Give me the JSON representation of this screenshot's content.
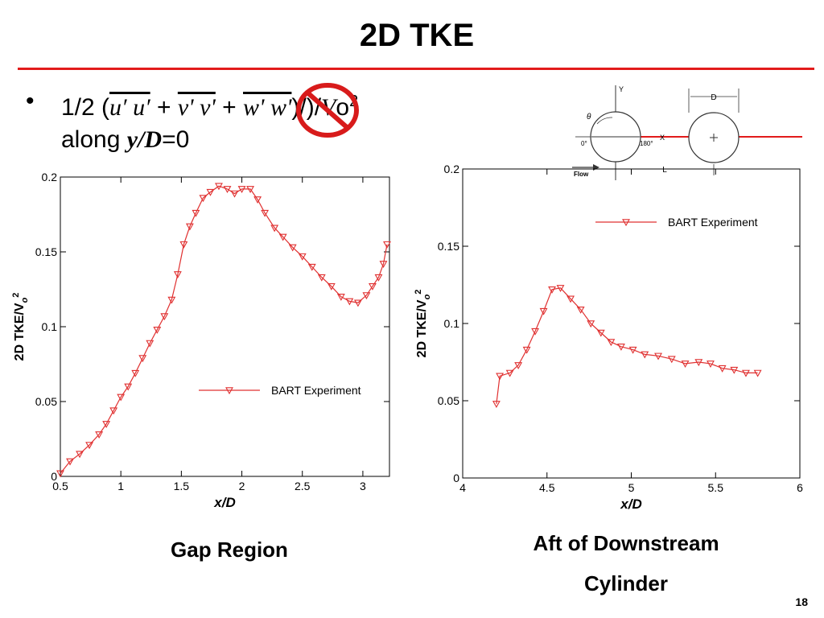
{
  "slide": {
    "title": "2D TKE",
    "page_number": "18"
  },
  "bullet": {
    "marker": "•",
    "prefix": "1/2 (",
    "term_uu": "u′ u′",
    "plus1": " + ",
    "term_vv": "v' v'",
    "plus2": " + ",
    "term_ww": "w' w'",
    "suffix": ")/)/",
    "velocity": "V",
    "subscript": "o",
    "exponent": "2",
    "along": "along ",
    "yd": "y/D",
    "eq": "=0"
  },
  "schematic": {
    "y_label": "Y",
    "x_label": "X",
    "theta": "θ",
    "angle_0": "0°",
    "angle_180": "180°",
    "d_label": "D",
    "l_label": "L",
    "flow_label": "Flow"
  },
  "captions": {
    "left": "Gap Region",
    "right_line1": "Aft of Downstream",
    "right_line2": "Cylinder"
  },
  "colors": {
    "accent": "#e21b1b",
    "series": "#e03030",
    "no_sign": "#d81b1b"
  },
  "chart_data": [
    {
      "type": "line",
      "title": "",
      "xlabel": "x/D",
      "ylabel": "2D TKE/V_o^2",
      "xlim": [
        0.5,
        3.22
      ],
      "ylim": [
        0,
        0.2
      ],
      "xticks": [
        "0.5",
        "1",
        "1.5",
        "2",
        "2.5",
        "3"
      ],
      "xtick_values": [
        0.5,
        1,
        1.5,
        2,
        2.5,
        3
      ],
      "yticks": [
        "0",
        "0.05",
        "0.1",
        "0.15",
        "0.2"
      ],
      "ytick_values": [
        0,
        0.05,
        0.1,
        0.15,
        0.2
      ],
      "legend": "BART Experiment",
      "legend_position": "right, lower-middle",
      "grid": false,
      "series": [
        {
          "name": "BART Experiment",
          "marker": "triangle-down",
          "x": [
            0.5,
            0.58,
            0.66,
            0.74,
            0.82,
            0.88,
            0.94,
            1.0,
            1.06,
            1.12,
            1.18,
            1.24,
            1.3,
            1.36,
            1.42,
            1.47,
            1.52,
            1.57,
            1.62,
            1.68,
            1.74,
            1.81,
            1.88,
            1.94,
            2.0,
            2.07,
            2.13,
            2.19,
            2.27,
            2.34,
            2.42,
            2.5,
            2.58,
            2.66,
            2.74,
            2.82,
            2.89,
            2.96,
            3.03,
            3.08,
            3.13,
            3.17,
            3.2
          ],
          "y": [
            0.002,
            0.01,
            0.015,
            0.021,
            0.028,
            0.035,
            0.044,
            0.053,
            0.06,
            0.069,
            0.079,
            0.089,
            0.098,
            0.107,
            0.118,
            0.135,
            0.155,
            0.167,
            0.176,
            0.186,
            0.19,
            0.194,
            0.192,
            0.189,
            0.192,
            0.192,
            0.185,
            0.176,
            0.166,
            0.16,
            0.153,
            0.147,
            0.14,
            0.133,
            0.127,
            0.12,
            0.117,
            0.116,
            0.121,
            0.127,
            0.133,
            0.142,
            0.155
          ]
        }
      ]
    },
    {
      "type": "line",
      "title": "",
      "xlabel": "x/D",
      "ylabel": "2D TKE/V_o^2",
      "xlim": [
        4,
        6
      ],
      "ylim": [
        0,
        0.2
      ],
      "xticks": [
        "4",
        "4.5",
        "5",
        "5.5",
        "6"
      ],
      "xtick_values": [
        4,
        4.5,
        5,
        5.5,
        6
      ],
      "yticks": [
        "0",
        "0.05",
        "0.1",
        "0.15",
        "0.2"
      ],
      "ytick_values": [
        0,
        0.05,
        0.1,
        0.15,
        0.2
      ],
      "legend": "BART Experiment",
      "legend_position": "top-right",
      "grid": false,
      "series": [
        {
          "name": "BART Experiment",
          "marker": "triangle-down",
          "x": [
            4.2,
            4.22,
            4.28,
            4.33,
            4.38,
            4.43,
            4.48,
            4.53,
            4.58,
            4.64,
            4.7,
            4.76,
            4.82,
            4.88,
            4.94,
            5.01,
            5.08,
            5.16,
            5.24,
            5.32,
            5.4,
            5.47,
            5.54,
            5.61,
            5.68,
            5.75
          ],
          "y": [
            0.048,
            0.066,
            0.068,
            0.073,
            0.083,
            0.095,
            0.108,
            0.122,
            0.123,
            0.116,
            0.109,
            0.1,
            0.094,
            0.088,
            0.085,
            0.083,
            0.08,
            0.079,
            0.077,
            0.074,
            0.075,
            0.074,
            0.071,
            0.07,
            0.068,
            0.068
          ]
        }
      ]
    }
  ]
}
